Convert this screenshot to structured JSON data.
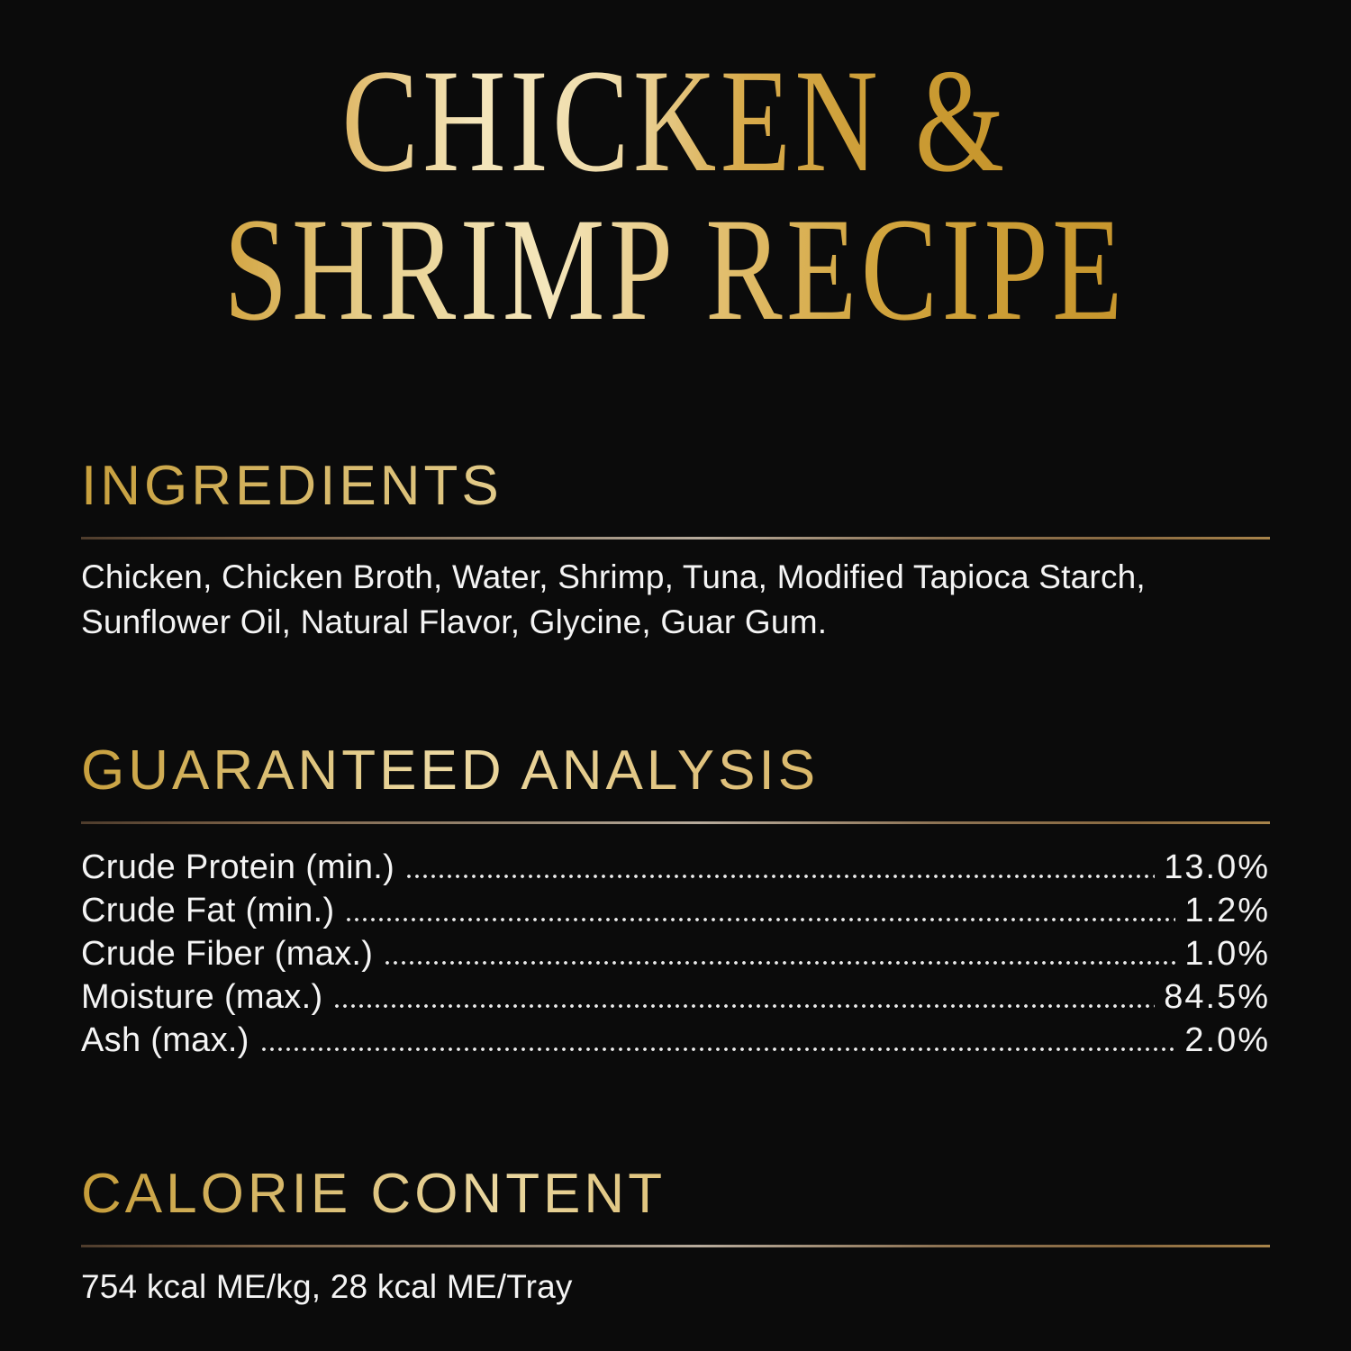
{
  "title": {
    "line1": "CHICKEN &",
    "line2": "SHRIMP RECIPE"
  },
  "sections": {
    "ingredients": {
      "heading": "INGREDIENTS",
      "text": "Chicken, Chicken Broth, Water, Shrimp, Tuna, Modified Tapioca Starch, Sunflower Oil, Natural Flavor, Glycine, Guar Gum."
    },
    "guaranteed_analysis": {
      "heading": "GUARANTEED ANALYSIS",
      "rows": [
        {
          "label": "Crude Protein (min.)",
          "value": "13.0%"
        },
        {
          "label": "Crude Fat (min.)",
          "value": "1.2%"
        },
        {
          "label": "Crude Fiber (max.)",
          "value": "1.0%"
        },
        {
          "label": "Moisture (max.)",
          "value": "84.5%"
        },
        {
          "label": "Ash (max.)",
          "value": "2.0%"
        }
      ]
    },
    "calorie_content": {
      "heading": "CALORIE CONTENT",
      "text": "754 kcal ME/kg, 28 kcal ME/Tray"
    }
  },
  "colors": {
    "background": "#0b0b0b",
    "text": "#f4f4f4",
    "gold_light": "#f4e6bc",
    "gold_mid": "#d8ab4c",
    "gold_dark": "#c6952c",
    "rule_brown": "#7c6248",
    "rule_silver": "#b7ab9c",
    "rule_gold": "#a8844b"
  }
}
